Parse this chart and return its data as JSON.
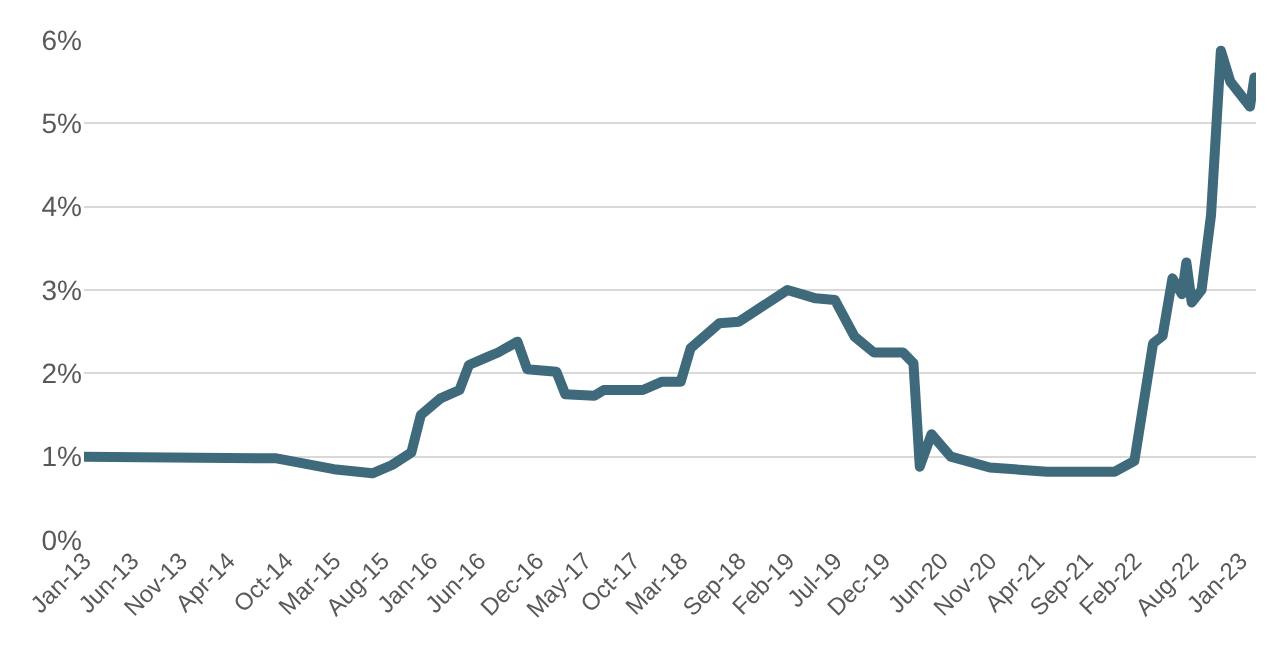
{
  "chart_data": {
    "type": "line",
    "grid": "y",
    "line_style": "solid",
    "marker": "none",
    "x": [
      "2013-01-01",
      "2014-09-01",
      "2015-03-01",
      "2015-07-01",
      "2015-09-01",
      "2015-11-01",
      "2015-12-01",
      "2016-02-01",
      "2016-04-01",
      "2016-05-01",
      "2016-07-01",
      "2016-08-01",
      "2016-10-01",
      "2016-11-01",
      "2017-02-01",
      "2017-03-01",
      "2017-06-01",
      "2017-07-01",
      "2017-11-01",
      "2018-01-01",
      "2018-03-01",
      "2018-04-01",
      "2018-07-01",
      "2018-09-01",
      "2019-02-01",
      "2019-05-01",
      "2019-07-01",
      "2019-09-01",
      "2019-11-01",
      "2020-02-01",
      "2020-03-05",
      "2020-03-25",
      "2020-05-01",
      "2020-07-01",
      "2020-11-01",
      "2021-05-01",
      "2021-12-01",
      "2022-02-01",
      "2022-04-01",
      "2022-05-01",
      "2022-06-01",
      "2022-07-01",
      "2022-07-15",
      "2022-08-01",
      "2022-09-01",
      "2022-10-01",
      "2022-11-01",
      "2022-12-01",
      "2023-02-01",
      "2023-02-15"
    ],
    "series": [
      {
        "color": "#3e6a7b",
        "values": [
          1.0,
          0.98,
          0.85,
          0.8,
          0.9,
          1.05,
          1.5,
          1.7,
          1.8,
          2.1,
          2.2,
          2.25,
          2.38,
          2.05,
          2.02,
          1.75,
          1.73,
          1.8,
          1.8,
          1.9,
          1.9,
          2.3,
          2.6,
          2.62,
          3.0,
          2.9,
          2.88,
          2.44,
          2.25,
          2.25,
          2.12,
          0.88,
          1.27,
          1.0,
          0.87,
          0.82,
          0.82,
          0.95,
          2.36,
          2.45,
          3.14,
          2.95,
          3.33,
          2.85,
          3.0,
          3.9,
          5.87,
          5.5,
          5.2,
          5.55
        ]
      }
    ],
    "xlim": [
      "2013-01-01",
      "2023-02-20"
    ],
    "xticks": [
      {
        "value": "2013-01-01",
        "label": "Jan-13"
      },
      {
        "value": "2013-06-01",
        "label": "Jun-13"
      },
      {
        "value": "2013-11-01",
        "label": "Nov-13"
      },
      {
        "value": "2014-04-01",
        "label": "Apr-14"
      },
      {
        "value": "2014-10-01",
        "label": "Oct-14"
      },
      {
        "value": "2015-03-01",
        "label": "Mar-15"
      },
      {
        "value": "2015-08-01",
        "label": "Aug-15"
      },
      {
        "value": "2016-01-01",
        "label": "Jan-16"
      },
      {
        "value": "2016-06-01",
        "label": "Jun-16"
      },
      {
        "value": "2016-12-01",
        "label": "Dec-16"
      },
      {
        "value": "2017-05-01",
        "label": "May-17"
      },
      {
        "value": "2017-10-01",
        "label": "Oct-17"
      },
      {
        "value": "2018-03-01",
        "label": "Mar-18"
      },
      {
        "value": "2018-09-01",
        "label": "Sep-18"
      },
      {
        "value": "2019-02-01",
        "label": "Feb-19"
      },
      {
        "value": "2019-07-01",
        "label": "Jul-19"
      },
      {
        "value": "2019-12-01",
        "label": "Dec-19"
      },
      {
        "value": "2020-06-01",
        "label": "Jun-20"
      },
      {
        "value": "2020-11-01",
        "label": "Nov-20"
      },
      {
        "value": "2021-04-01",
        "label": "Apr-21"
      },
      {
        "value": "2021-09-01",
        "label": "Sep-21"
      },
      {
        "value": "2022-02-01",
        "label": "Feb-22"
      },
      {
        "value": "2022-08-01",
        "label": "Aug-22"
      },
      {
        "value": "2023-01-01",
        "label": "Jan-23"
      }
    ],
    "ylim": [
      0,
      6
    ],
    "yticks": [
      {
        "value": 0,
        "label": "0%"
      },
      {
        "value": 1,
        "label": "1%"
      },
      {
        "value": 2,
        "label": "2%"
      },
      {
        "value": 3,
        "label": "3%"
      },
      {
        "value": 4,
        "label": "4%"
      },
      {
        "value": 5,
        "label": "5%"
      },
      {
        "value": 6,
        "label": "6%"
      }
    ]
  }
}
